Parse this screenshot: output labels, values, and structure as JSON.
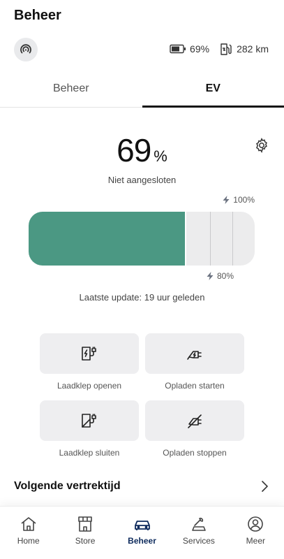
{
  "header": {
    "title": "Beheer"
  },
  "status": {
    "battery_percent": "69%",
    "range": "282 km"
  },
  "tabs": [
    {
      "label": "Beheer",
      "active": false
    },
    {
      "label": "EV",
      "active": true
    }
  ],
  "charge": {
    "value": "69",
    "unit": "%",
    "level": 0.69,
    "plug_status": "Niet aangesloten",
    "max_limit": "100%",
    "target_limit": "80%",
    "target_level": 0.8,
    "last_update": "Laatste update: 19 uur geleden",
    "fill_color": "#4b9883"
  },
  "actions": [
    {
      "label": "Laadklep openen",
      "icon": "charge-port-open-icon"
    },
    {
      "label": "Opladen starten",
      "icon": "plug-charge-start-icon"
    },
    {
      "label": "Laadklep sluiten",
      "icon": "charge-port-close-icon"
    },
    {
      "label": "Opladen stoppen",
      "icon": "plug-charge-stop-icon"
    }
  ],
  "next_departure": {
    "label": "Volgende vertrektijd"
  },
  "nav": [
    {
      "label": "Home",
      "icon": "home-icon",
      "active": false
    },
    {
      "label": "Store",
      "icon": "store-icon",
      "active": false
    },
    {
      "label": "Beheer",
      "icon": "car-icon",
      "active": true
    },
    {
      "label": "Services",
      "icon": "services-icon",
      "active": false
    },
    {
      "label": "Meer",
      "icon": "profile-icon",
      "active": false
    }
  ]
}
